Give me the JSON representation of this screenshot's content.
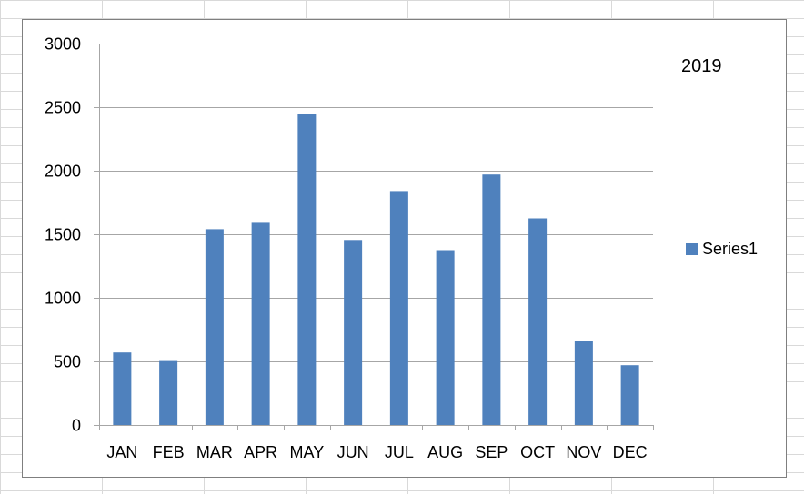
{
  "chart_data": {
    "type": "bar",
    "categories": [
      "JAN",
      "FEB",
      "MAR",
      "APR",
      "MAY",
      "JUN",
      "JUL",
      "AUG",
      "SEP",
      "OCT",
      "NOV",
      "DEC"
    ],
    "series": [
      {
        "name": "Series1",
        "values": [
          570,
          510,
          1540,
          1590,
          2450,
          1455,
          1840,
          1375,
          1970,
          1625,
          660,
          470
        ],
        "color": "#4f81bd"
      }
    ],
    "title": "",
    "annotation": "2019",
    "xlabel": "",
    "ylabel": "",
    "ylim": [
      0,
      3000
    ],
    "yticks": [
      0,
      500,
      1000,
      1500,
      2000,
      2500,
      3000
    ],
    "grid": true,
    "legend_position": "right",
    "colors": {
      "gridline": "#a6a6a6",
      "axis": "#a6a6a6",
      "border": "#7f7f7f"
    }
  }
}
